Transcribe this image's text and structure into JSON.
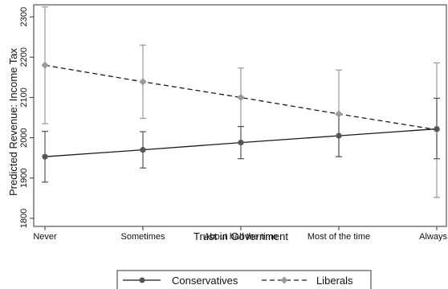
{
  "chart_data": {
    "type": "line",
    "xlabel": "Trust in Government",
    "ylabel": "Predicted Revenue: Income Tax",
    "categories": [
      "Never",
      "Sometimes",
      "About half the time",
      "Most of the time",
      "Always"
    ],
    "ylim": [
      1780,
      2330
    ],
    "yticks": [
      1800,
      1900,
      2000,
      2100,
      2200,
      2300
    ],
    "grid": false,
    "legend": "bottom",
    "series": [
      {
        "name": "Conservatives",
        "style": "solid",
        "color": "#1a1a1a",
        "marker_color": "#555555",
        "marker": "circle",
        "values": [
          1953,
          1970,
          1988,
          2005,
          2022
        ],
        "ci_low": [
          1890,
          1925,
          1948,
          1953,
          1948
        ],
        "ci_high": [
          2016,
          2015,
          2028,
          2058,
          2098
        ]
      },
      {
        "name": "Liberals",
        "style": "dashed",
        "color": "#1a1a1a",
        "marker_color": "#9a9a9a",
        "marker": "diamond",
        "values": [
          2180,
          2139,
          2100,
          2059,
          2020
        ],
        "ci_low": [
          2035,
          2048,
          2028,
          1953,
          1852
        ],
        "ci_high": [
          2325,
          2230,
          2173,
          2168,
          2186
        ]
      }
    ]
  }
}
